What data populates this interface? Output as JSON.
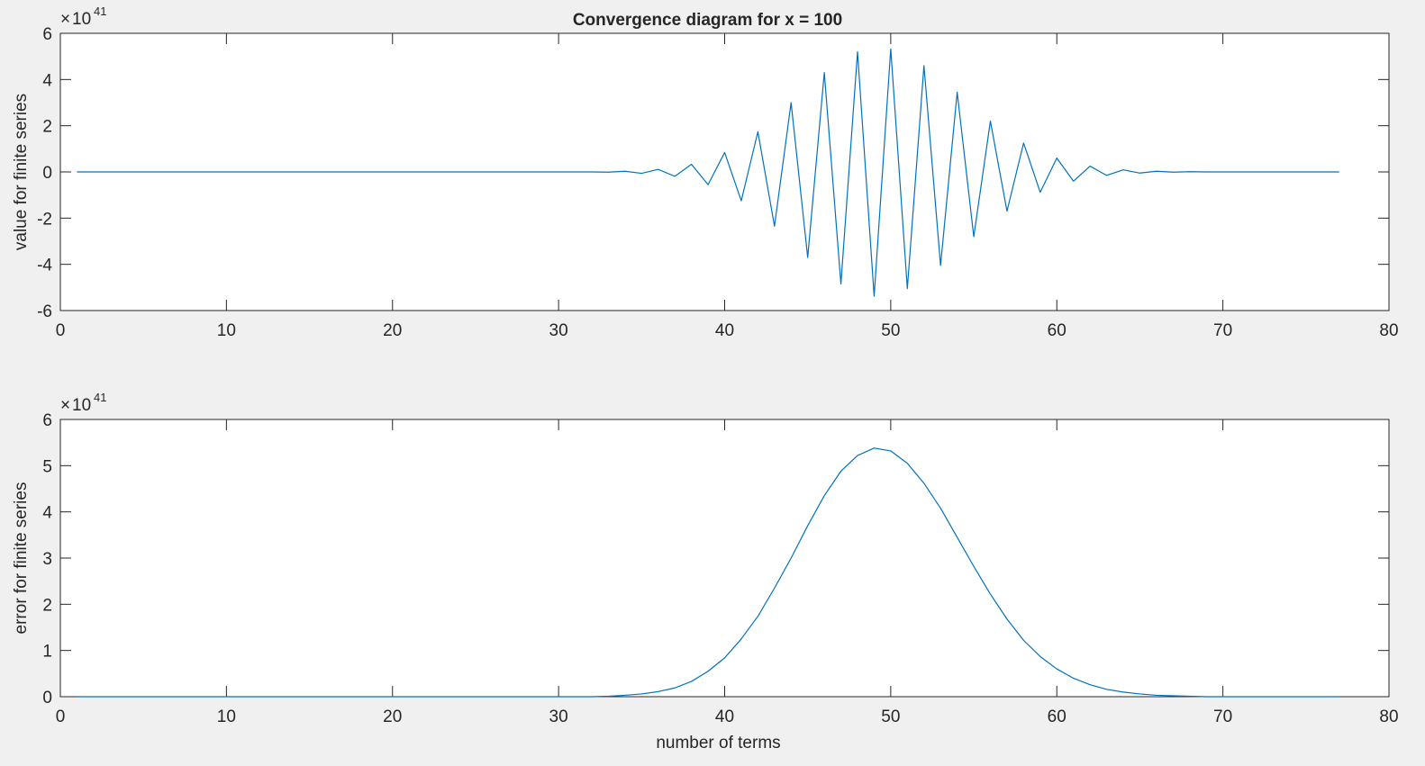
{
  "chart_data": [
    {
      "type": "line",
      "title": "Convergence diagram for x = 100",
      "xlabel": "",
      "ylabel": "value for finite series",
      "exponent_base": "10",
      "exponent_power": "41",
      "xlim": [
        0,
        80
      ],
      "ylim": [
        -6,
        6
      ],
      "xticks": [
        0,
        10,
        20,
        30,
        40,
        50,
        60,
        70,
        80
      ],
      "yticks": [
        -6,
        -4,
        -2,
        0,
        2,
        4,
        6
      ],
      "xtick_labels": [
        "0",
        "10",
        "20",
        "30",
        "40",
        "50",
        "60",
        "70",
        "80"
      ],
      "ytick_labels": [
        "-6",
        "-4",
        "-2",
        "0",
        "2",
        "4",
        "6"
      ],
      "grid": false,
      "color": "#0072bd",
      "series": [
        {
          "x": [
            1,
            2,
            3,
            4,
            5,
            6,
            7,
            8,
            9,
            10,
            11,
            12,
            13,
            14,
            15,
            16,
            17,
            18,
            19,
            20,
            21,
            22,
            23,
            24,
            25,
            26,
            27,
            28,
            29,
            30,
            31,
            32,
            33,
            34,
            35,
            36,
            37,
            38,
            39,
            40,
            41,
            42,
            43,
            44,
            45,
            46,
            47,
            48,
            49,
            50,
            51,
            52,
            53,
            54,
            55,
            56,
            57,
            58,
            59,
            60,
            61,
            62,
            63,
            64,
            65,
            66,
            67,
            68,
            69,
            70,
            71,
            72,
            73,
            74,
            75,
            76,
            77
          ],
          "y": [
            0,
            0,
            0,
            0,
            0,
            0,
            0,
            0,
            0,
            0,
            0,
            0,
            0,
            0,
            0,
            0,
            0,
            0,
            0,
            0,
            0,
            0,
            0,
            0,
            0,
            0,
            0,
            0,
            0,
            0,
            0,
            0,
            -0.01,
            0.03,
            -0.06,
            0.11,
            -0.19,
            0.33,
            -0.55,
            0.84,
            -1.25,
            1.74,
            -2.35,
            3.0,
            -3.7,
            4.3,
            -4.85,
            5.2,
            -5.38,
            5.32,
            -5.05,
            4.6,
            -4.05,
            3.45,
            -2.8,
            2.2,
            -1.7,
            1.25,
            -0.88,
            0.6,
            -0.4,
            0.25,
            -0.15,
            0.09,
            -0.05,
            0.03,
            -0.01,
            0.01,
            0,
            0,
            0,
            0,
            0,
            0,
            0,
            0,
            0
          ]
        }
      ]
    },
    {
      "type": "line",
      "title": "",
      "xlabel": "number of terms",
      "ylabel": "error for finite series",
      "exponent_base": "10",
      "exponent_power": "41",
      "xlim": [
        0,
        80
      ],
      "ylim": [
        0,
        6
      ],
      "xticks": [
        0,
        10,
        20,
        30,
        40,
        50,
        60,
        70,
        80
      ],
      "yticks": [
        0,
        1,
        2,
        3,
        4,
        5,
        6
      ],
      "xtick_labels": [
        "0",
        "10",
        "20",
        "30",
        "40",
        "50",
        "60",
        "70",
        "80"
      ],
      "ytick_labels": [
        "0",
        "1",
        "2",
        "3",
        "4",
        "5",
        "6"
      ],
      "grid": false,
      "color": "#0072bd",
      "series": [
        {
          "x": [
            1,
            2,
            3,
            4,
            5,
            6,
            7,
            8,
            9,
            10,
            11,
            12,
            13,
            14,
            15,
            16,
            17,
            18,
            19,
            20,
            21,
            22,
            23,
            24,
            25,
            26,
            27,
            28,
            29,
            30,
            31,
            32,
            33,
            34,
            35,
            36,
            37,
            38,
            39,
            40,
            41,
            42,
            43,
            44,
            45,
            46,
            47,
            48,
            49,
            50,
            51,
            52,
            53,
            54,
            55,
            56,
            57,
            58,
            59,
            60,
            61,
            62,
            63,
            64,
            65,
            66,
            67,
            68,
            69,
            70,
            71,
            72,
            73,
            74,
            75,
            76,
            77
          ],
          "y": [
            0,
            0,
            0,
            0,
            0,
            0,
            0,
            0,
            0,
            0,
            0,
            0,
            0,
            0,
            0,
            0,
            0,
            0,
            0,
            0,
            0,
            0,
            0,
            0,
            0,
            0,
            0,
            0,
            0,
            0,
            0,
            0,
            0.01,
            0.03,
            0.06,
            0.11,
            0.19,
            0.33,
            0.55,
            0.84,
            1.25,
            1.74,
            2.35,
            3.0,
            3.7,
            4.35,
            4.88,
            5.22,
            5.38,
            5.32,
            5.05,
            4.62,
            4.08,
            3.45,
            2.82,
            2.22,
            1.68,
            1.22,
            0.87,
            0.6,
            0.4,
            0.26,
            0.16,
            0.1,
            0.06,
            0.03,
            0.02,
            0.01,
            0,
            0,
            0,
            0,
            0,
            0,
            0,
            0,
            0
          ]
        }
      ]
    }
  ]
}
